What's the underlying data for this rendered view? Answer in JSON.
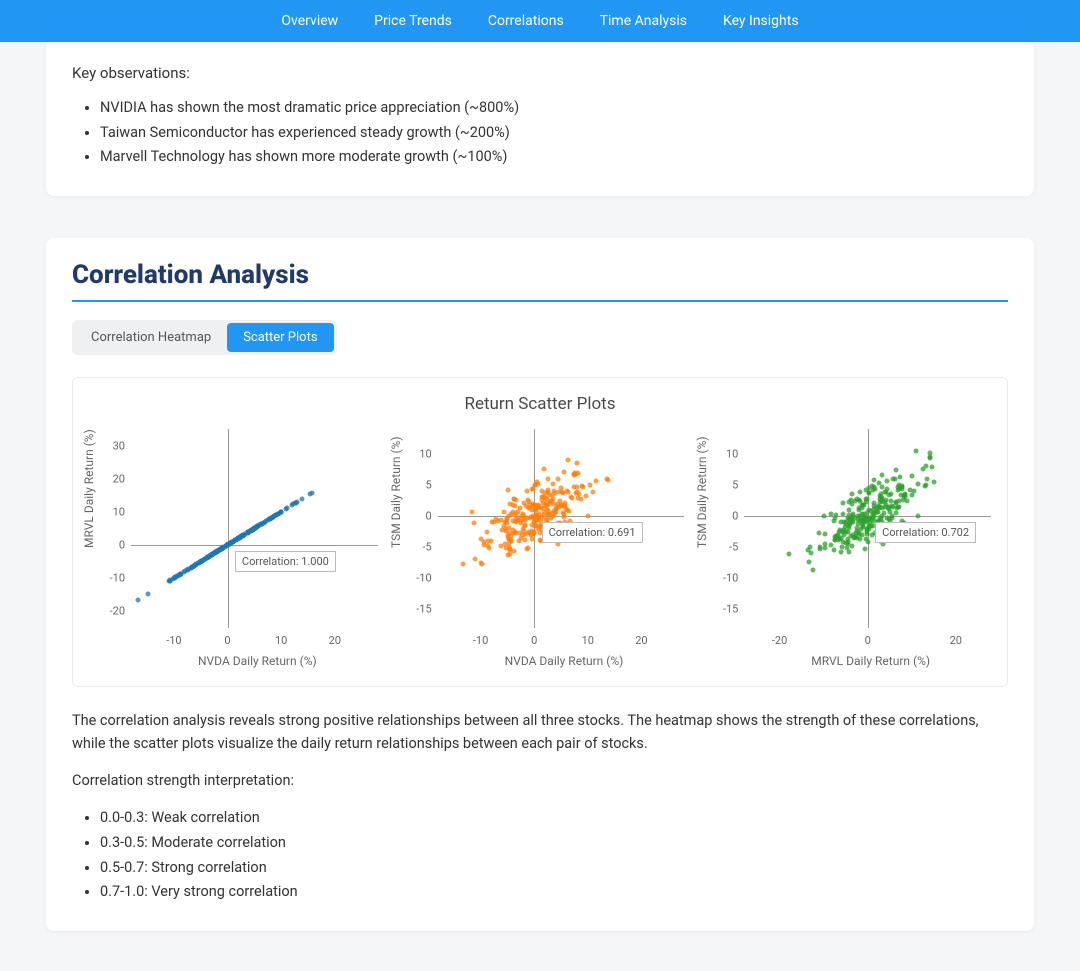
{
  "nav": {
    "items": [
      "Overview",
      "Price Trends",
      "Correlations",
      "Time Analysis",
      "Key Insights"
    ],
    "bg": "#2196f3"
  },
  "observations": {
    "heading": "Key observations:",
    "items": [
      "NVIDIA has shown the most dramatic price appreciation (~800%)",
      "Taiwan Semiconductor has experienced steady growth (~200%)",
      "Marvell Technology has shown more moderate growth (~100%)"
    ]
  },
  "correlation": {
    "title": "Correlation Analysis",
    "accent": "#2196f3",
    "tabs": [
      {
        "label": "Correlation Heatmap",
        "active": false
      },
      {
        "label": "Scatter Plots",
        "active": true
      }
    ],
    "chart": {
      "title": "Return Scatter Plots",
      "panels": [
        {
          "xlabel": "NVDA Daily Return (%)",
          "ylabel": "MRVL Daily Return (%)",
          "color": "#1f77b4",
          "annotation": "Correlation: 1.000",
          "xlim": [
            -18,
            28
          ],
          "ylim": [
            -25,
            35
          ],
          "xticks": [
            -10,
            0,
            10,
            20
          ],
          "yticks": [
            -20,
            -10,
            0,
            10,
            20,
            30
          ],
          "corr": 1.0,
          "spreadX": 5.5,
          "spreadY": 5.5,
          "n": 260
        },
        {
          "xlabel": "NVDA Daily Return (%)",
          "ylabel": "TSM Daily Return (%)",
          "color": "#ff7f0e",
          "annotation": "Correlation: 0.691",
          "xlim": [
            -18,
            28
          ],
          "ylim": [
            -18,
            14
          ],
          "xticks": [
            -10,
            0,
            10,
            20
          ],
          "yticks": [
            -15,
            -10,
            -5,
            0,
            5,
            10
          ],
          "corr": 0.691,
          "spreadX": 5.0,
          "spreadY": 3.2,
          "n": 260
        },
        {
          "xlabel": "MRVL Daily Return (%)",
          "ylabel": "TSM Daily Return (%)",
          "color": "#2ca02c",
          "annotation": "Correlation: 0.702",
          "xlim": [
            -28,
            28
          ],
          "ylim": [
            -18,
            14
          ],
          "xticks": [
            -20,
            0,
            20
          ],
          "yticks": [
            -15,
            -10,
            -5,
            0,
            5,
            10
          ],
          "corr": 0.702,
          "spreadX": 5.5,
          "spreadY": 3.2,
          "n": 260
        }
      ]
    },
    "description": "The correlation analysis reveals strong positive relationships between all three stocks. The heatmap shows the strength of these correlations, while the scatter plots visualize the daily return relationships between each pair of stocks.",
    "interp_heading": "Correlation strength interpretation:",
    "interp": [
      "0.0-0.3: Weak correlation",
      "0.3-0.5: Moderate correlation",
      "0.5-0.7: Strong correlation",
      "0.7-1.0: Very strong correlation"
    ]
  }
}
